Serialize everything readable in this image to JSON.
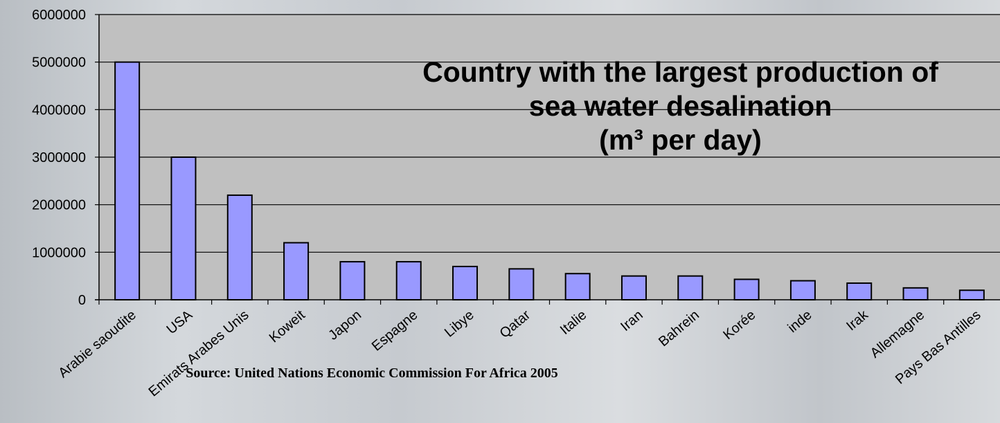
{
  "chart_data": {
    "type": "bar",
    "title_lines": [
      "Country with the largest production of",
      "sea water desalination",
      "(m³ per day)"
    ],
    "source": "Source:  United Nations Economic Commission For Africa 2005",
    "categories": [
      "Arabie saoudite",
      "USA",
      "Emirats Arabes Unis",
      "Koweit",
      "Japon",
      "Espagne",
      "Libye",
      "Qatar",
      "Italie",
      "Iran",
      "Bahrein",
      "Korée",
      "inde",
      "Irak",
      "Allemagne",
      "Pays Bas Antilles"
    ],
    "values": [
      5000000,
      3000000,
      2200000,
      1200000,
      800000,
      800000,
      700000,
      650000,
      550000,
      500000,
      500000,
      430000,
      400000,
      350000,
      250000,
      200000
    ],
    "ylim": [
      0,
      6000000
    ],
    "yticks": [
      0,
      1000000,
      2000000,
      3000000,
      4000000,
      5000000,
      6000000
    ],
    "ytick_labels": [
      "0",
      "1000000",
      "2000000",
      "3000000",
      "4000000",
      "5000000",
      "6000000"
    ],
    "grid": true,
    "legend": "none",
    "colors": {
      "plot_background": "#c0c0c0",
      "bar_fill": "#9999ff",
      "bar_stroke": "#000000",
      "gridline": "#000000"
    }
  }
}
